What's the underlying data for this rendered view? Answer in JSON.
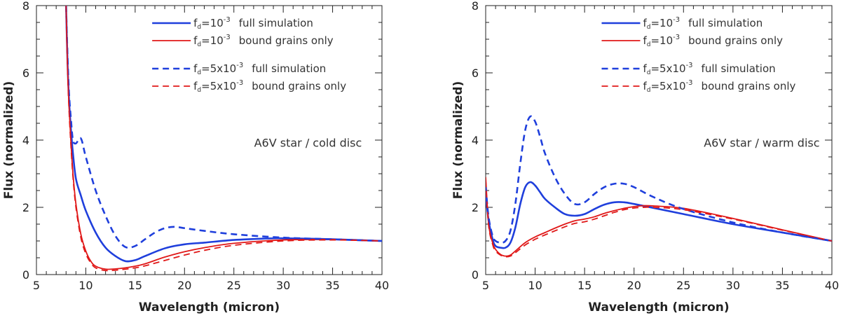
{
  "chart_data": [
    {
      "type": "line",
      "annotation": "A6V star / cold disc",
      "xlabel": "Wavelength (micron)",
      "ylabel": "Flux (normalized)",
      "xlim": [
        5,
        40
      ],
      "ylim": [
        0,
        8
      ],
      "xticks": [
        5,
        10,
        15,
        20,
        25,
        30,
        35,
        40
      ],
      "yticks": [
        0,
        2,
        4,
        6,
        8
      ],
      "legend_position": "top-right",
      "series": [
        {
          "name": "fd=10^-3 full simulation",
          "legend_base": "f",
          "legend_sub": "d",
          "legend_coef": "=10",
          "legend_exp": "-3",
          "legend_desc": "full simulation",
          "color": "#1f3fdc",
          "dash": "solid",
          "x": [
            8.0,
            8.15,
            8.3,
            8.5,
            8.7,
            9.0,
            9.5,
            10.0,
            11.0,
            12.0,
            13.0,
            14.0,
            15.0,
            16.0,
            18.0,
            20.0,
            22.0,
            25.0,
            28.0,
            30.0,
            35.0,
            40.0
          ],
          "y": [
            8.0,
            6.3,
            5.2,
            4.3,
            3.6,
            2.85,
            2.35,
            1.9,
            1.25,
            0.8,
            0.55,
            0.4,
            0.43,
            0.55,
            0.78,
            0.9,
            0.95,
            1.03,
            1.07,
            1.08,
            1.05,
            1.0
          ]
        },
        {
          "name": "fd=10^-3 bound grains only",
          "legend_base": "f",
          "legend_sub": "d",
          "legend_coef": "=10",
          "legend_exp": "-3",
          "legend_desc": "bound grains only",
          "color": "#e01818",
          "dash": "solid",
          "x": [
            8.0,
            8.15,
            8.3,
            8.5,
            8.7,
            9.0,
            9.5,
            10.0,
            10.5,
            11.0,
            12.0,
            13.0,
            14.0,
            15.0,
            16.0,
            18.0,
            20.0,
            22.0,
            25.0,
            30.0,
            35.0,
            40.0
          ],
          "y": [
            8.0,
            6.2,
            5.0,
            3.9,
            3.0,
            2.1,
            1.2,
            0.7,
            0.4,
            0.25,
            0.16,
            0.17,
            0.2,
            0.25,
            0.32,
            0.52,
            0.68,
            0.8,
            0.93,
            1.03,
            1.04,
            1.0
          ]
        },
        {
          "name": "fd=5x10^-3 full simulation",
          "legend_base": "f",
          "legend_sub": "d",
          "legend_coef": "=5x10",
          "legend_exp": "-3",
          "legend_desc": "full simulation",
          "color": "#1f3fdc",
          "dash": "dashed",
          "x": [
            8.0,
            8.15,
            8.3,
            8.5,
            8.7,
            9.0,
            9.5,
            10.0,
            11.0,
            12.0,
            13.0,
            14.0,
            15.0,
            16.0,
            17.0,
            18.0,
            19.0,
            20.0,
            22.0,
            25.0,
            30.0,
            35.0,
            40.0
          ],
          "y": [
            8.0,
            6.5,
            5.4,
            4.6,
            4.0,
            3.9,
            4.05,
            3.5,
            2.5,
            1.75,
            1.15,
            0.82,
            0.85,
            1.05,
            1.25,
            1.38,
            1.42,
            1.38,
            1.3,
            1.2,
            1.1,
            1.05,
            1.0
          ]
        },
        {
          "name": "fd=5x10^-3 bound grains only",
          "legend_base": "f",
          "legend_sub": "d",
          "legend_coef": "=5x10",
          "legend_exp": "-3",
          "legend_desc": "bound grains only",
          "color": "#e01818",
          "dash": "dashed",
          "x": [
            8.0,
            8.15,
            8.3,
            8.5,
            8.7,
            9.0,
            9.5,
            10.0,
            10.5,
            11.0,
            12.0,
            13.0,
            14.0,
            15.0,
            16.0,
            18.0,
            20.0,
            22.0,
            25.0,
            30.0,
            35.0,
            40.0
          ],
          "y": [
            8.0,
            6.1,
            4.9,
            3.8,
            2.9,
            2.0,
            1.1,
            0.62,
            0.35,
            0.2,
            0.12,
            0.13,
            0.16,
            0.2,
            0.26,
            0.42,
            0.58,
            0.72,
            0.87,
            1.0,
            1.03,
            1.0
          ]
        }
      ]
    },
    {
      "type": "line",
      "annotation": "A6V star / warm disc",
      "xlabel": "Wavelength (micron)",
      "ylabel": "Flux (normalized)",
      "xlim": [
        5,
        40
      ],
      "ylim": [
        0,
        8
      ],
      "xticks": [
        5,
        10,
        15,
        20,
        25,
        30,
        35,
        40
      ],
      "yticks": [
        0,
        2,
        4,
        6,
        8
      ],
      "legend_position": "top-right",
      "series": [
        {
          "name": "fd=10^-3 full simulation",
          "legend_base": "f",
          "legend_sub": "d",
          "legend_coef": "=10",
          "legend_exp": "-3",
          "legend_desc": "full simulation",
          "color": "#1f3fdc",
          "dash": "solid",
          "x": [
            5.0,
            5.3,
            5.7,
            6.0,
            6.5,
            7.0,
            7.5,
            8.0,
            8.5,
            9.0,
            9.5,
            10.0,
            10.5,
            11.0,
            12.0,
            13.0,
            14.0,
            15.0,
            16.0,
            17.0,
            18.0,
            19.0,
            20.0,
            22.0,
            25.0,
            30.0,
            35.0,
            40.0
          ],
          "y": [
            2.4,
            1.6,
            1.05,
            0.85,
            0.8,
            0.8,
            0.95,
            1.4,
            2.1,
            2.6,
            2.75,
            2.65,
            2.45,
            2.25,
            2.0,
            1.8,
            1.75,
            1.8,
            1.95,
            2.08,
            2.15,
            2.15,
            2.1,
            1.98,
            1.8,
            1.5,
            1.25,
            1.0
          ]
        },
        {
          "name": "fd=10^-3 bound grains only",
          "legend_base": "f",
          "legend_sub": "d",
          "legend_coef": "=10",
          "legend_exp": "-3",
          "legend_desc": "bound grains only",
          "color": "#e01818",
          "dash": "solid",
          "x": [
            5.0,
            5.3,
            5.7,
            6.0,
            6.5,
            7.0,
            7.5,
            8.0,
            9.0,
            10.0,
            11.0,
            12.0,
            13.0,
            14.0,
            15.0,
            16.0,
            17.0,
            18.0,
            19.0,
            20.0,
            21.0,
            22.0,
            25.0,
            30.0,
            35.0,
            40.0
          ],
          "y": [
            2.9,
            1.5,
            0.95,
            0.75,
            0.6,
            0.55,
            0.58,
            0.7,
            0.95,
            1.12,
            1.25,
            1.38,
            1.5,
            1.6,
            1.65,
            1.72,
            1.82,
            1.9,
            1.97,
            2.02,
            2.05,
            2.04,
            1.97,
            1.67,
            1.33,
            1.0
          ]
        },
        {
          "name": "fd=5x10^-3 full simulation",
          "legend_base": "f",
          "legend_sub": "d",
          "legend_coef": "=5x10",
          "legend_exp": "-3",
          "legend_desc": "full simulation",
          "color": "#1f3fdc",
          "dash": "dashed",
          "x": [
            5.0,
            5.3,
            5.7,
            6.0,
            6.5,
            7.0,
            7.5,
            8.0,
            8.5,
            9.0,
            9.5,
            10.0,
            10.5,
            11.0,
            12.0,
            13.0,
            14.0,
            15.0,
            16.0,
            17.0,
            18.0,
            19.0,
            20.0,
            22.0,
            25.0,
            30.0,
            35.0,
            40.0
          ],
          "y": [
            2.6,
            1.7,
            1.15,
            1.0,
            0.95,
            1.0,
            1.3,
            2.1,
            3.3,
            4.3,
            4.7,
            4.55,
            4.1,
            3.6,
            2.9,
            2.4,
            2.1,
            2.15,
            2.4,
            2.6,
            2.7,
            2.7,
            2.6,
            2.3,
            1.95,
            1.55,
            1.25,
            1.0
          ]
        },
        {
          "name": "fd=5x10^-3 bound grains only",
          "legend_base": "f",
          "legend_sub": "d",
          "legend_coef": "=5x10",
          "legend_exp": "-3",
          "legend_desc": "bound grains only",
          "color": "#e01818",
          "dash": "dashed",
          "x": [
            5.0,
            5.3,
            5.7,
            6.0,
            6.5,
            7.0,
            7.5,
            8.0,
            9.0,
            10.0,
            11.0,
            12.0,
            13.0,
            14.0,
            15.0,
            16.0,
            17.0,
            18.0,
            19.0,
            20.0,
            21.0,
            22.0,
            25.0,
            30.0,
            35.0,
            40.0
          ],
          "y": [
            2.8,
            1.45,
            0.9,
            0.7,
            0.58,
            0.53,
            0.55,
            0.65,
            0.88,
            1.05,
            1.18,
            1.3,
            1.42,
            1.52,
            1.57,
            1.65,
            1.75,
            1.85,
            1.93,
            1.98,
            2.0,
            2.0,
            1.93,
            1.65,
            1.32,
            1.0
          ]
        }
      ]
    }
  ]
}
